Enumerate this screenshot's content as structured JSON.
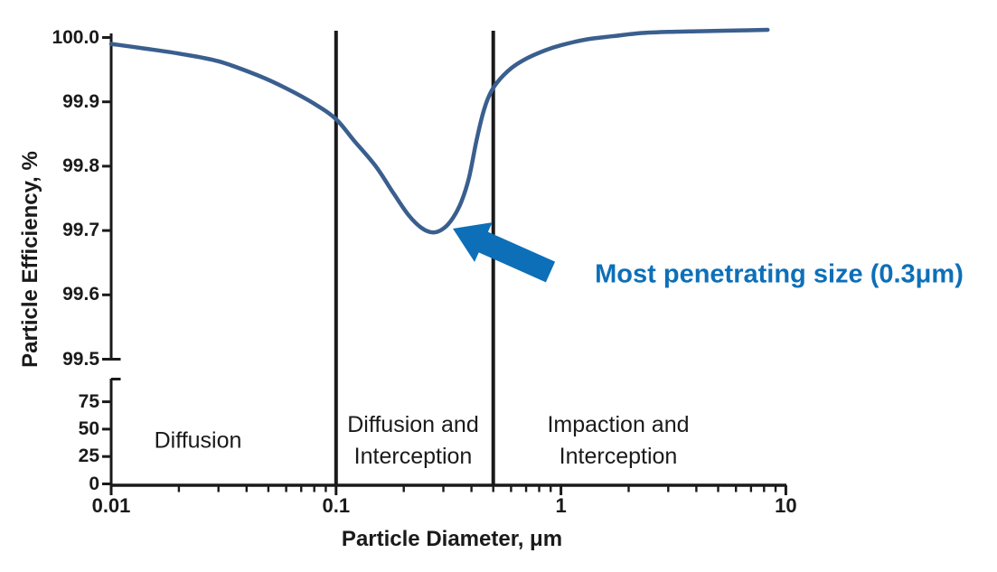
{
  "chart_data": {
    "type": "line",
    "title": "",
    "xlabel": "Particle Diameter, μm",
    "ylabel": "Particle Efficiency, %",
    "x_scale": "log",
    "xlim": [
      0.01,
      10
    ],
    "x_ticks": {
      "values": [
        0.01,
        0.1,
        1,
        10
      ],
      "labels": [
        "0.01",
        "0.1",
        "1",
        "10"
      ]
    },
    "upper_axis": {
      "ylim": [
        99.5,
        100.0
      ],
      "tick_values": [
        100.0,
        99.9,
        99.8,
        99.7,
        99.6,
        99.5
      ],
      "tick_labels": [
        "100.0",
        "99.9",
        "99.8",
        "99.7",
        "99.6",
        "99.5"
      ]
    },
    "lower_axis": {
      "ylim": [
        0,
        95
      ],
      "tick_values": [
        75,
        50,
        25,
        0
      ],
      "tick_labels": [
        "75",
        "50",
        "25",
        "0"
      ]
    },
    "series": [
      {
        "name": "particle-efficiency",
        "points": [
          [
            0.01,
            99.99
          ],
          [
            0.014,
            99.983
          ],
          [
            0.02,
            99.975
          ],
          [
            0.03,
            99.963
          ],
          [
            0.045,
            99.941
          ],
          [
            0.06,
            99.921
          ],
          [
            0.08,
            99.897
          ],
          [
            0.1,
            99.873
          ],
          [
            0.12,
            99.84
          ],
          [
            0.15,
            99.8
          ],
          [
            0.18,
            99.758
          ],
          [
            0.21,
            99.724
          ],
          [
            0.24,
            99.704
          ],
          [
            0.27,
            99.697
          ],
          [
            0.3,
            99.703
          ],
          [
            0.33,
            99.719
          ],
          [
            0.36,
            99.744
          ],
          [
            0.39,
            99.782
          ],
          [
            0.42,
            99.838
          ],
          [
            0.45,
            99.882
          ],
          [
            0.48,
            99.91
          ],
          [
            0.52,
            99.93
          ],
          [
            0.6,
            99.952
          ],
          [
            0.7,
            99.967
          ],
          [
            0.85,
            99.98
          ],
          [
            1.0,
            99.988
          ],
          [
            1.3,
            99.997
          ],
          [
            1.7,
            100.002
          ],
          [
            2.3,
            100.007
          ],
          [
            3.2,
            100.009
          ],
          [
            4.5,
            100.01
          ],
          [
            6.3,
            100.011
          ],
          [
            8.3,
            100.012
          ]
        ]
      }
    ],
    "dividers_um": [
      0.1,
      0.5
    ],
    "regions": [
      {
        "name": "diffusion",
        "lines": [
          "Diffusion"
        ]
      },
      {
        "name": "diffusion-and-interception",
        "lines": [
          "Diffusion and",
          "Interception"
        ]
      },
      {
        "name": "impaction-and-interception",
        "lines": [
          "Impaction and",
          "Interception"
        ]
      }
    ],
    "annotation": {
      "text": "Most penetrating size (0.3μm)",
      "arrow_points_to_um": 0.3
    },
    "colors": {
      "curve": "#3a5f8e",
      "accent_blue": "#0d6fb8",
      "axis": "#1a1a1a"
    }
  }
}
